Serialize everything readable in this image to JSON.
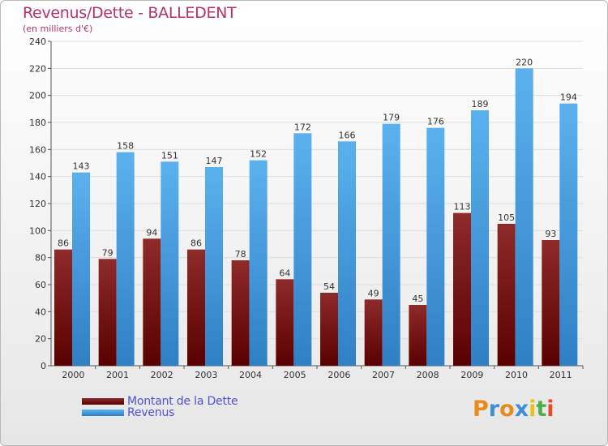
{
  "title": "Revenus/Dette - BALLEDENT",
  "subtitle": "(en milliers d'€)",
  "colors": {
    "dette": "#7a1515",
    "revenus": "#4aa3e6",
    "title": "#b2336b",
    "legend_text": "#5050d8"
  },
  "chart_data": {
    "type": "bar",
    "title": "Revenus/Dette - BALLEDENT",
    "ylabel": "(en milliers d'€)",
    "xlabel": "",
    "categories": [
      "2000",
      "2001",
      "2002",
      "2003",
      "2004",
      "2005",
      "2006",
      "2007",
      "2008",
      "2009",
      "2010",
      "2011"
    ],
    "series": [
      {
        "name": "Montant de la Dette",
        "values": [
          86,
          79,
          94,
          86,
          78,
          64,
          54,
          49,
          45,
          113,
          105,
          93
        ]
      },
      {
        "name": "Revenus",
        "values": [
          143,
          158,
          151,
          147,
          152,
          172,
          166,
          179,
          176,
          189,
          220,
          194
        ]
      }
    ],
    "ylim": [
      0,
      240
    ],
    "yticks": [
      0,
      20,
      40,
      60,
      80,
      100,
      120,
      140,
      160,
      180,
      200,
      220,
      240
    ],
    "grid": true,
    "legend_position": "bottom-left"
  },
  "legend": {
    "items": [
      {
        "label": "Montant de la Dette"
      },
      {
        "label": "Revenus"
      }
    ]
  },
  "logo": {
    "letters": [
      "P",
      "r",
      "o",
      "x",
      "i",
      "t",
      "i"
    ],
    "colors": [
      "#e98a1f",
      "#3c8fd8",
      "#e98a1f",
      "#3c8fd8",
      "#e8c21a",
      "#4bb04b",
      "#e84a2b"
    ]
  }
}
